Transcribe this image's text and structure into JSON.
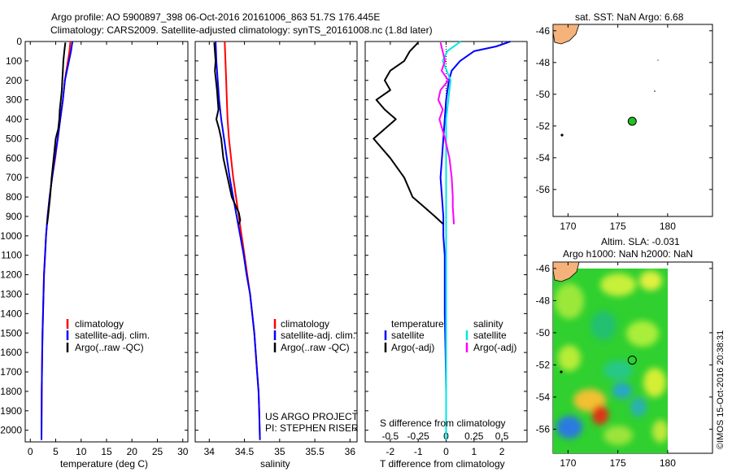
{
  "header": {
    "line1": "Argo profile: AO 5900897_398 06-Oct-2016 20161006_863 51.7S 176.445E",
    "line2": "Climatology: CARS2009. Satellite-adjusted climatology: synTS_20161008.nc (1.8d later)"
  },
  "colors": {
    "climatology": "#ff0000",
    "satellite": "#0000ff",
    "argo": "#000000",
    "salinity_satellite": "#00e5e5",
    "salinity_argo": "#ff00ff",
    "land": "#f5b27a",
    "float_marker": "#22c022"
  },
  "credits": {
    "project": "US ARGO PROJECT",
    "pi": "PI: STEPHEN RISER",
    "stamp": "©IMOS 15-Oct-2016 20:38:31"
  },
  "legend_profiles": [
    "climatology",
    "satellite-adj. clim.",
    "Argo(..raw -QC)"
  ],
  "legend_diff": {
    "temperature_title": "temperature",
    "salinity_title": "salinity",
    "satellite": "satellite",
    "argo": "Argo(-adj)"
  },
  "chart_data": [
    {
      "id": "temperature",
      "type": "line",
      "xlabel": "temperature (deg C)",
      "ylabel": "",
      "xlim": [
        -1,
        31
      ],
      "ylim": [
        2060,
        0
      ],
      "xticks": [
        0,
        5,
        10,
        15,
        20,
        25,
        30
      ],
      "yticks": [
        0,
        100,
        200,
        300,
        400,
        500,
        600,
        700,
        800,
        900,
        1000,
        1100,
        1200,
        1300,
        1400,
        1500,
        1600,
        1700,
        1800,
        1900,
        2000
      ],
      "series": [
        {
          "name": "climatology",
          "color": "#ff0000",
          "x": [
            7.9,
            7.7,
            7.4,
            7.1,
            6.8,
            6.4,
            5.9,
            5.4,
            4.9,
            4.3,
            3.8,
            3.4,
            3.1,
            2.9,
            2.7,
            2.6,
            2.5,
            2.4,
            2.35,
            2.3,
            2.25,
            2.2
          ],
          "y": [
            0,
            50,
            100,
            150,
            200,
            300,
            400,
            500,
            600,
            700,
            800,
            900,
            1000,
            1100,
            1200,
            1300,
            1400,
            1500,
            1600,
            1700,
            1800,
            2050
          ]
        },
        {
          "name": "satellite-adj. clim.",
          "color": "#0000ff",
          "x": [
            8.3,
            8.0,
            7.6,
            7.2,
            6.8,
            6.4,
            5.9,
            5.4,
            4.8,
            4.3,
            3.8,
            3.4,
            3.1,
            2.9,
            2.7,
            2.6,
            2.5,
            2.4,
            2.35,
            2.3,
            2.25,
            2.2
          ],
          "y": [
            0,
            50,
            100,
            150,
            200,
            300,
            400,
            500,
            600,
            700,
            800,
            900,
            1000,
            1100,
            1200,
            1300,
            1400,
            1500,
            1600,
            1700,
            1800,
            2050
          ]
        },
        {
          "name": "Argo(..raw -QC)",
          "color": "#000000",
          "x": [
            6.9,
            6.7,
            6.5,
            6.4,
            6.3,
            6.2,
            6.0,
            5.8,
            5.7,
            5.5,
            5.0,
            4.6,
            4.2,
            3.9,
            3.5,
            3.3
          ],
          "y": [
            5,
            50,
            100,
            150,
            200,
            250,
            300,
            350,
            400,
            450,
            500,
            600,
            700,
            800,
            900,
            940
          ]
        }
      ]
    },
    {
      "id": "salinity",
      "type": "line",
      "xlabel": "salinity",
      "ylabel": "",
      "xlim": [
        33.8,
        36.1
      ],
      "ylim": [
        2060,
        0
      ],
      "xticks": [
        34,
        34.5,
        35,
        35.5,
        36
      ],
      "xticklabels": [
        "34",
        "34.5",
        "35",
        "35.5",
        "36"
      ],
      "series": [
        {
          "name": "climatology",
          "color": "#ff0000",
          "x": [
            34.22,
            34.23,
            34.24,
            34.25,
            34.26,
            34.28,
            34.31,
            34.34,
            34.38,
            34.42,
            34.46,
            34.5,
            34.54,
            34.58,
            34.61,
            34.64,
            34.66,
            34.68,
            34.7,
            34.71,
            34.72
          ],
          "y": [
            0,
            100,
            200,
            300,
            400,
            500,
            600,
            700,
            800,
            900,
            1000,
            1100,
            1200,
            1300,
            1400,
            1500,
            1600,
            1700,
            1800,
            1900,
            2050
          ]
        },
        {
          "name": "satellite-adj. clim.",
          "color": "#0000ff",
          "x": [
            34.09,
            34.1,
            34.12,
            34.14,
            34.17,
            34.21,
            34.25,
            34.29,
            34.34,
            34.39,
            34.44,
            34.49,
            34.53,
            34.58,
            34.61,
            34.64,
            34.66,
            34.68,
            34.7,
            34.71,
            34.72
          ],
          "y": [
            0,
            100,
            200,
            300,
            400,
            500,
            600,
            700,
            800,
            900,
            1000,
            1100,
            1200,
            1300,
            1400,
            1500,
            1600,
            1700,
            1800,
            1900,
            2050
          ]
        },
        {
          "name": "Argo(..raw -QC)",
          "color": "#000000",
          "x": [
            34.07,
            34.09,
            34.08,
            34.11,
            34.13,
            34.1,
            34.14,
            34.17,
            34.2,
            34.26,
            34.32,
            34.38,
            34.42,
            34.44,
            34.42
          ],
          "y": [
            5,
            100,
            150,
            250,
            350,
            400,
            450,
            500,
            600,
            700,
            800,
            850,
            880,
            920,
            940
          ]
        }
      ]
    },
    {
      "id": "difference",
      "type": "line",
      "xlabel": "T difference from climatology",
      "top_axis_label": "S difference from climatology",
      "xlim": [
        -2.9,
        2.9
      ],
      "ylim": [
        2060,
        0
      ],
      "xticks": [
        -2,
        -1,
        0,
        1,
        2
      ],
      "top_ticks": [
        -0.5,
        -0.25,
        0,
        0.25,
        0.5
      ],
      "top_ticklabels": [
        "-0.5",
        "-0.25",
        "0",
        "0.25",
        "0.5"
      ],
      "series": [
        {
          "name": "temperature satellite",
          "color": "#0000ff",
          "axis": "T",
          "x": [
            2.3,
            1.8,
            1.0,
            0.5,
            0.2,
            0.1,
            0.0,
            -0.05,
            -0.1,
            -0.15,
            -0.2,
            -0.15,
            -0.1,
            -0.1,
            -0.05,
            -0.05,
            -0.05,
            -0.02,
            0.0,
            0.0,
            0.0,
            0.0
          ],
          "y": [
            0,
            25,
            50,
            100,
            150,
            200,
            300,
            400,
            500,
            600,
            700,
            800,
            900,
            1000,
            1100,
            1200,
            1400,
            1600,
            1800,
            1900,
            2000,
            2050
          ]
        },
        {
          "name": "temperature Argo(-adj)",
          "color": "#000000",
          "axis": "T",
          "x": [
            -1.0,
            -1.3,
            -1.5,
            -2.0,
            -2.2,
            -2.0,
            -2.5,
            -2.2,
            -1.8,
            -2.6,
            -2.0,
            -1.5,
            -1.2,
            -0.8,
            -0.4,
            -0.1
          ],
          "y": [
            5,
            50,
            100,
            150,
            200,
            250,
            300,
            350,
            400,
            500,
            600,
            700,
            800,
            850,
            900,
            940
          ]
        },
        {
          "name": "salinity satellite",
          "color": "#00e5e5",
          "axis": "S",
          "x": [
            0.13,
            0.01,
            -0.03,
            0.04,
            0.02,
            0.0,
            0.0,
            0.0,
            0.0,
            0.0,
            0.0,
            0.0,
            0.0,
            0.0,
            0.0
          ],
          "y": [
            0,
            50,
            100,
            200,
            300,
            400,
            500,
            600,
            700,
            800,
            900,
            1000,
            1200,
            1500,
            2050
          ]
        },
        {
          "name": "salinity Argo(-adj)",
          "color": "#ff00ff",
          "axis": "S",
          "x": [
            -0.05,
            -0.01,
            -0.04,
            0.02,
            -0.05,
            -0.07,
            -0.03,
            -0.06,
            -0.01,
            0.03,
            0.05,
            0.06,
            0.06,
            0.07
          ],
          "y": [
            5,
            100,
            150,
            200,
            250,
            300,
            350,
            400,
            500,
            600,
            700,
            800,
            850,
            940
          ]
        }
      ]
    },
    {
      "id": "sst-map",
      "type": "scatter",
      "title": "sat. SST: NaN Argo: 6.68",
      "xlim": [
        168.5,
        184.5
      ],
      "ylim": [
        -57.7,
        -45.6
      ],
      "xticks": [
        170,
        175,
        180
      ],
      "yticks": [
        -46,
        -48,
        -50,
        -52,
        -54,
        -56
      ],
      "points": [
        {
          "name": "Argo float",
          "x": 176.445,
          "y": -51.7
        }
      ]
    },
    {
      "id": "sla-map",
      "type": "heatmap",
      "title_line1": "Altim. SLA: -0.031",
      "title_line2": "Argo h1000: NaN h2000: NaN",
      "xlim": [
        168.5,
        184.5
      ],
      "ylim": [
        -57.5,
        -45.6
      ],
      "xticks": [
        170,
        175,
        180
      ],
      "yticks": [
        -46,
        -48,
        -50,
        -52,
        -54,
        -56
      ],
      "data_extent_lon": [
        169.2,
        180.0
      ],
      "points": [
        {
          "name": "Argo float",
          "x": 176.445,
          "y": -51.7
        }
      ]
    }
  ]
}
